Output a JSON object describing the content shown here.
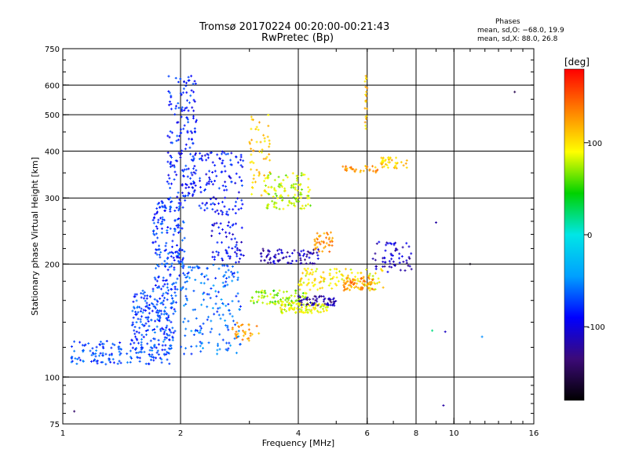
{
  "chart_data": {
    "type": "scatter",
    "title": "Tromsø 20170224 00:20:00-00:21:43",
    "subtitle": "RwPretec (Bp)",
    "xlabel": "Frequency [MHz]",
    "ylabel": "Stationary phase Virtual Height [km]",
    "x_scale": "log",
    "y_scale": "log",
    "xlim": [
      1,
      16
    ],
    "ylim": [
      75,
      750
    ],
    "x_ticks": [
      1,
      2,
      4,
      6,
      8,
      10,
      16
    ],
    "y_ticks": [
      75,
      100,
      200,
      300,
      400,
      500,
      600,
      750
    ],
    "x_gridlines": [
      2,
      4,
      6,
      8,
      10
    ],
    "y_gridlines": [
      100,
      200,
      300,
      400,
      500,
      600
    ],
    "grid": true,
    "phases": {
      "title": "Phases",
      "o_line": "mean, sd,O: −68.0, 19.9",
      "x_line": "mean, sd,X:  88.0, 26.8"
    },
    "colorbar": {
      "label": "[deg]",
      "range": [
        -180,
        180
      ],
      "ticks": [
        100,
        0,
        -100
      ],
      "colors": [
        "#000000",
        "#3c0a78",
        "#0000ff",
        "#00a0ff",
        "#00e6e6",
        "#00d200",
        "#ffff00",
        "#ff8000",
        "#ff0000"
      ]
    },
    "series_clusters": [
      {
        "freq": [
          1.05,
          1.9
        ],
        "height": [
          108,
          125
        ],
        "phase": -70,
        "points": 160
      },
      {
        "freq": [
          1.5,
          1.95
        ],
        "height": [
          125,
          170
        ],
        "phase": -72,
        "points": 180
      },
      {
        "freq": [
          1.7,
          2.05
        ],
        "height": [
          170,
          300
        ],
        "phase": -75,
        "points": 190
      },
      {
        "freq": [
          1.85,
          2.2
        ],
        "height": [
          300,
          640
        ],
        "phase": -82,
        "points": 150
      },
      {
        "freq": [
          2.0,
          2.85
        ],
        "height": [
          115,
          200
        ],
        "phase": -62,
        "points": 170
      },
      {
        "freq": [
          2.05,
          2.9
        ],
        "height": [
          270,
          400
        ],
        "phase": -86,
        "points": 140
      },
      {
        "freq": [
          2.4,
          2.9
        ],
        "height": [
          200,
          260
        ],
        "phase": -95,
        "points": 60
      },
      {
        "freq": [
          2.7,
          3.2
        ],
        "height": [
          125,
          140
        ],
        "phase": 125,
        "points": 30
      },
      {
        "freq": [
          3.0,
          3.4
        ],
        "height": [
          300,
          500
        ],
        "phase": 105,
        "points": 60
      },
      {
        "freq": [
          3.0,
          4.2
        ],
        "height": [
          155,
          170
        ],
        "phase": 70,
        "points": 90
      },
      {
        "freq": [
          3.3,
          4.3
        ],
        "height": [
          280,
          350
        ],
        "phase": 80,
        "points": 110
      },
      {
        "freq": [
          3.2,
          4.5
        ],
        "height": [
          200,
          220
        ],
        "phase": -115,
        "points": 80
      },
      {
        "freq": [
          3.6,
          4.8
        ],
        "height": [
          148,
          158
        ],
        "phase": 90,
        "points": 90
      },
      {
        "freq": [
          4.0,
          5.0
        ],
        "height": [
          155,
          165
        ],
        "phase": -120,
        "points": 60
      },
      {
        "freq": [
          4.0,
          6.6
        ],
        "height": [
          170,
          195
        ],
        "phase": 95,
        "points": 120
      },
      {
        "freq": [
          4.4,
          4.9
        ],
        "height": [
          215,
          245
        ],
        "phase": 130,
        "points": 40
      },
      {
        "freq": [
          5.2,
          6.2
        ],
        "height": [
          170,
          185
        ],
        "phase": 130,
        "points": 60
      },
      {
        "freq": [
          5.2,
          6.4
        ],
        "height": [
          350,
          365
        ],
        "phase": 125,
        "points": 30
      },
      {
        "freq": [
          6.5,
          7.6
        ],
        "height": [
          360,
          385
        ],
        "phase": 110,
        "points": 40
      },
      {
        "freq": [
          6.2,
          7.8
        ],
        "height": [
          190,
          230
        ],
        "phase": -110,
        "points": 60
      },
      {
        "freq": [
          5.9,
          6.0
        ],
        "height": [
          450,
          640
        ],
        "phase": 110,
        "points": 20
      }
    ],
    "isolated_points": [
      {
        "freq": 1.07,
        "height": 81,
        "phase": -140
      },
      {
        "freq": 9.4,
        "height": 84,
        "phase": -120
      },
      {
        "freq": 9.5,
        "height": 132,
        "phase": -110
      },
      {
        "freq": 8.8,
        "height": 133,
        "phase": 20
      },
      {
        "freq": 11.0,
        "height": 200,
        "phase": -175
      },
      {
        "freq": 11.8,
        "height": 128,
        "phase": -50
      },
      {
        "freq": 14.3,
        "height": 575,
        "phase": -150
      },
      {
        "freq": 9.0,
        "height": 258,
        "phase": -120
      }
    ]
  }
}
